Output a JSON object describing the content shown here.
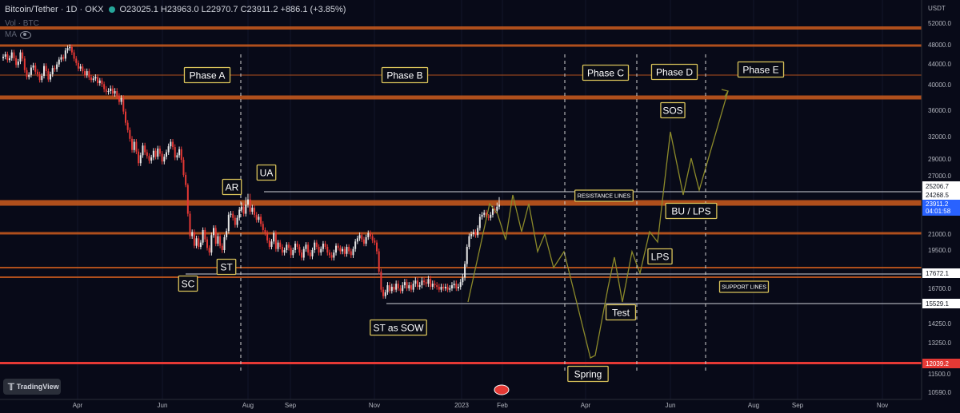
{
  "header": {
    "symbol": "Bitcoin/Tether · 1D · OKX",
    "ohlc": "O23025.1 H23963.0 L22970.7 C23911.2 +886.1 (+3.85%)",
    "vol_label": "Vol · BTC",
    "ma_label": "MA",
    "currency": "USDT"
  },
  "branding": {
    "tradingview": "TradingView"
  },
  "colors": {
    "background": "#080a18",
    "orange_line": "#c2561d",
    "red_line": "#e53935",
    "up": "#e6e6e6",
    "down": "#e53935",
    "path": "#8c8a2a",
    "label_border": "#d8c25a"
  },
  "chart_data": {
    "type": "candlestick",
    "x_ticks": [
      "Apr",
      "Jun",
      "Aug",
      "Sep",
      "Nov",
      "2023",
      "Feb",
      "Apr",
      "Jun",
      "Aug",
      "Sep",
      "Nov"
    ],
    "y_ticks": [
      "52000.0",
      "48000.0",
      "44000.0",
      "40000.0",
      "36000.0",
      "32000.0",
      "29000.0",
      "27000.0",
      "21000.0",
      "19500.0",
      "16700.0",
      "14250.0",
      "13250.0",
      "11500.0",
      "10590.0"
    ],
    "price_badges": [
      {
        "value": "25206.7",
        "style": "plain"
      },
      {
        "value": "24268.5",
        "style": "plain"
      },
      {
        "value": "23911.2",
        "sub": "04:01:58",
        "style": "current"
      },
      {
        "value": "17672.1",
        "style": "plain"
      },
      {
        "value": "15529.1",
        "style": "plain"
      },
      {
        "value": "12039.2",
        "style": "red"
      }
    ],
    "phases": [
      "Phase A",
      "Phase B",
      "Phase C",
      "Phase D",
      "Phase E"
    ],
    "annotations": [
      "SC",
      "AR",
      "ST",
      "UA",
      "ST as SOW",
      "Spring",
      "Test",
      "LPS",
      "BU / LPS",
      "SOS"
    ],
    "text_notes": [
      "RESISTANCE LINES",
      "SUPPORT LINES"
    ],
    "candles_close": [
      45500,
      46000,
      44800,
      45200,
      46400,
      45200,
      43800,
      44500,
      46400,
      45100,
      42800,
      41500,
      41900,
      43300,
      43700,
      42500,
      42000,
      40900,
      41700,
      43600,
      42600,
      41000,
      42000,
      43200,
      43000,
      43900,
      44900,
      45400,
      45100,
      46800,
      47300,
      47500,
      46400,
      45100,
      44200,
      43100,
      43500,
      42600,
      41800,
      42600,
      41400,
      40900,
      41200,
      41500,
      40300,
      40800,
      40100,
      39300,
      38900,
      39000,
      39400,
      38600,
      39000,
      38200,
      37300,
      37900,
      35800,
      34100,
      33000,
      31700,
      30200,
      31300,
      30000,
      28500,
      29500,
      30800,
      29900,
      29400,
      28800,
      29200,
      30100,
      29300,
      30400,
      29700,
      28700,
      29300,
      29900,
      30700,
      31300,
      30600,
      29200,
      29500,
      30300,
      28900,
      27100,
      25400,
      23000,
      20800,
      21200,
      19900,
      20600,
      19800,
      20200,
      21400,
      20500,
      19700,
      19300,
      20900,
      21600,
      20100,
      20800,
      19900,
      19500,
      20700,
      21300,
      22900,
      23000,
      22600,
      21900,
      22600,
      23400,
      23700,
      23000,
      23900,
      24100,
      23200,
      23600,
      22900,
      22400,
      22700,
      22000,
      21400,
      21100,
      20400,
      19800,
      20300,
      21100,
      19600,
      20200,
      19800,
      19300,
      19500,
      20000,
      19700,
      19100,
      19500,
      20100,
      19800,
      19300,
      18900,
      19600,
      20000,
      19300,
      19000,
      19500,
      20200,
      19800,
      19300,
      19600,
      20100,
      19800,
      19300,
      19100,
      18900,
      19300,
      19900,
      19700,
      19400,
      19600,
      19200,
      19800,
      19400,
      19100,
      19600,
      20300,
      20600,
      20900,
      20500,
      20100,
      20700,
      21100,
      20800,
      20400,
      20200,
      19400,
      17800,
      16600,
      16100,
      16400,
      16900,
      16500,
      16800,
      16600,
      17000,
      16700,
      16500,
      16900,
      17100,
      16700,
      16900,
      16600,
      17000,
      17200,
      16800,
      16900,
      17200,
      17100,
      17000,
      17300,
      16800,
      17000,
      16900,
      16800,
      16600,
      16800,
      16700,
      16800,
      16600,
      16700,
      16900,
      17000,
      16700,
      16800,
      17100,
      17400,
      18400,
      19800,
      20800,
      21000,
      21200,
      20900,
      21600,
      22700,
      22900,
      23100,
      22700,
      22600,
      22900,
      23500,
      23300,
      23700,
      23900
    ]
  }
}
